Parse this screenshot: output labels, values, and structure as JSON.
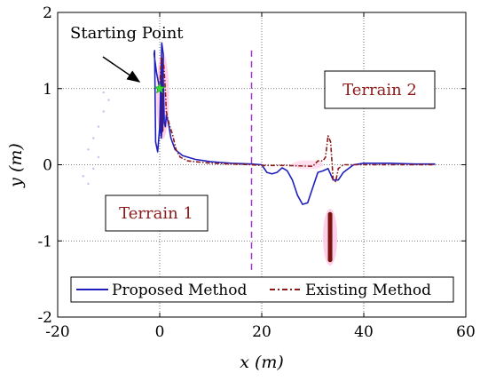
{
  "chart_data": {
    "type": "line",
    "title": "",
    "xlabel": "x (m)",
    "ylabel": "y (m)",
    "xlim": [
      -20,
      60
    ],
    "ylim": [
      -2,
      2
    ],
    "x_ticks": [
      -20,
      0,
      20,
      40,
      60
    ],
    "y_ticks": [
      -2,
      -1,
      0,
      1,
      2
    ],
    "x_tick_labels": [
      "-20",
      "0",
      "20",
      "40",
      "60"
    ],
    "y_tick_labels": [
      "-2",
      "-1",
      "0",
      "1",
      "2"
    ],
    "grid": true,
    "legend_placement": "bottom",
    "series": [
      {
        "name": "Proposed Method",
        "color": "#1f1fbf",
        "style": "solid",
        "x": [
          0,
          -0.6,
          -1.1,
          -1.0,
          -0.8,
          -0.4,
          0,
          0.4,
          0.7,
          0.6,
          0.3,
          0.1,
          0.4,
          0.7,
          0.9,
          1.1,
          1.3,
          1.7,
          2.2,
          3.0,
          4.5,
          7,
          10,
          14,
          18,
          20,
          21,
          22,
          23,
          24,
          25,
          26,
          27,
          28,
          29,
          30,
          31,
          32,
          33,
          34,
          35,
          36,
          38,
          40,
          45,
          50,
          54
        ],
        "y": [
          1.0,
          1.2,
          1.45,
          1.5,
          0.3,
          0.17,
          0.5,
          1.6,
          1.45,
          0.6,
          0.35,
          0.5,
          1.4,
          1.1,
          0.55,
          0.5,
          0.65,
          0.55,
          0.35,
          0.2,
          0.12,
          0.07,
          0.04,
          0.02,
          0.01,
          0.0,
          -0.1,
          -0.12,
          -0.1,
          -0.04,
          -0.08,
          -0.2,
          -0.4,
          -0.52,
          -0.5,
          -0.3,
          -0.1,
          -0.08,
          -0.05,
          -0.2,
          -0.2,
          -0.1,
          0.0,
          0.02,
          0.02,
          0.01,
          0.01
        ]
      },
      {
        "name": "Existing Method",
        "color": "#8b1a1a",
        "style": "dashdot",
        "x": [
          0,
          0.3,
          0.8,
          1.0,
          1.3,
          1.6,
          2.0,
          2.5,
          3.2,
          4.0,
          5.5,
          7,
          10,
          14,
          18,
          20,
          25,
          30,
          31,
          32,
          32.5,
          33,
          33.5,
          34,
          34.5,
          35,
          36,
          38,
          42,
          48,
          54
        ],
        "y": [
          1.0,
          1.4,
          1.3,
          1.1,
          0.7,
          0.6,
          0.5,
          0.4,
          0.2,
          0.1,
          0.05,
          0.04,
          0.02,
          0.01,
          0.0,
          -0.01,
          -0.01,
          -0.02,
          0.05,
          0.05,
          0.1,
          0.38,
          0.3,
          -0.2,
          -0.22,
          -0.05,
          0.0,
          0.0,
          0.0,
          0.0,
          0.0
        ]
      }
    ],
    "annotations": {
      "starting_point": "Starting Point",
      "terrain1": "Terrain 1",
      "terrain2": "Terrain 2"
    }
  }
}
